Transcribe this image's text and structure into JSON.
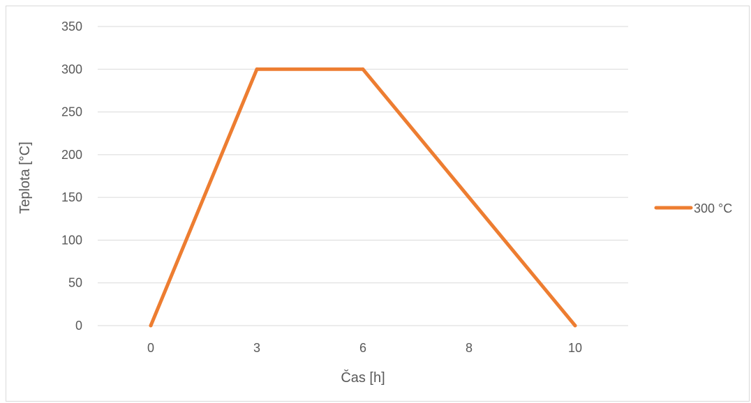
{
  "chart_data": {
    "type": "line",
    "title": "",
    "xlabel": "Čas [h]",
    "ylabel": "Teplota [°C]",
    "categories": [
      "0",
      "3",
      "6",
      "8",
      "10"
    ],
    "ylim": [
      0,
      350
    ],
    "yticks": [
      0,
      50,
      100,
      150,
      200,
      250,
      300,
      350
    ],
    "grid": true,
    "legend_position": "right",
    "series": [
      {
        "name": "300 °C",
        "color": "#ed7d31",
        "values": [
          0,
          300,
          300,
          150,
          0
        ]
      }
    ]
  }
}
